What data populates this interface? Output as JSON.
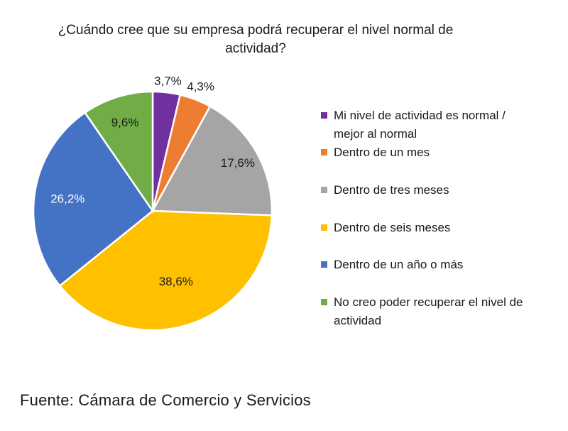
{
  "chart_data": {
    "type": "pie",
    "title": "¿Cuándo cree que su empresa podrá recuperar el nivel normal de actividad?",
    "categories": [
      "Mi nivel de actividad es normal / mejor al normal",
      "Dentro de un mes",
      "Dentro de tres meses",
      "Dentro de seis meses",
      "Dentro de un año o más",
      "No creo poder recuperar el nivel de actividad"
    ],
    "values": [
      3.7,
      4.3,
      17.6,
      38.6,
      26.2,
      9.6
    ],
    "data_labels": [
      "3,7%",
      "4,3%",
      "17,6%",
      "38,6%",
      "26,2%",
      "9,6%"
    ],
    "colors": [
      "#7030A0",
      "#ED7D31",
      "#A5A5A5",
      "#FFC000",
      "#4472C4",
      "#70AD47"
    ],
    "label_colors": [
      "#1a1a1a",
      "#1a1a1a",
      "#1a1a1a",
      "#1a1a1a",
      "#ffffff",
      "#1a1a1a"
    ],
    "legend_position": "right",
    "start_angle_deg": 0,
    "direction": "clockwise"
  },
  "source": "Fuente: Cámara de Comercio y Servicios"
}
